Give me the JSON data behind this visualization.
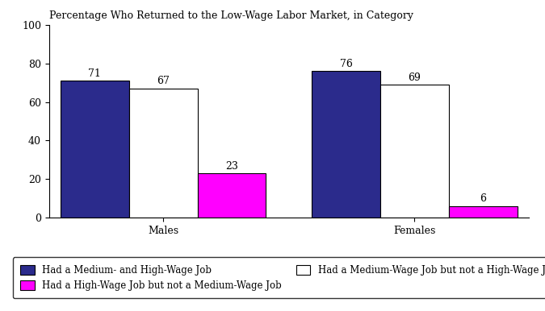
{
  "title": "Percentage Who Returned to the Low-Wage Labor Market, in Category",
  "groups": [
    "Males",
    "Females"
  ],
  "series": [
    {
      "label": "Had a Medium- and High-Wage Job",
      "color": "#2B2B8C",
      "values": [
        71,
        76
      ]
    },
    {
      "label": "Had a Medium-Wage Job but not a High-Wage Job",
      "color": "#FFFFFF",
      "values": [
        67,
        69
      ]
    },
    {
      "label": "Had a High-Wage Job but not a Medium-Wage Job",
      "color": "#FF00FF",
      "values": [
        23,
        6
      ]
    }
  ],
  "ylim": [
    0,
    100
  ],
  "yticks": [
    0,
    20,
    40,
    60,
    80,
    100
  ],
  "bar_width": 0.12,
  "label_fontsize": 9,
  "title_fontsize": 9,
  "tick_fontsize": 9,
  "legend_fontsize": 8.5,
  "bar_edge_color": "#000000",
  "group_centers": [
    0.28,
    0.72
  ]
}
